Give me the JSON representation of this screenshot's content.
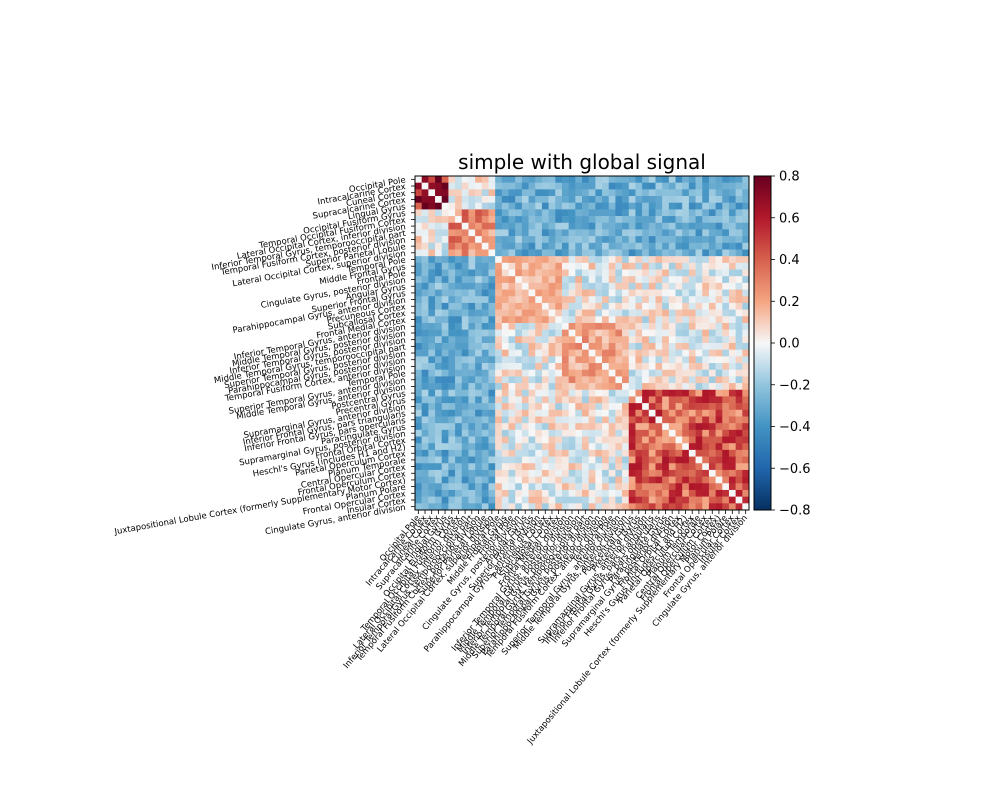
{
  "chart_data": {
    "type": "heatmap",
    "title": "simple with global signal",
    "colormap": "RdBu_r",
    "vmin": -0.8,
    "vmax": 0.8,
    "colorbar_ticks": [
      "0.8",
      "0.6",
      "0.4",
      "0.2",
      "0.0",
      "−0.2",
      "−0.4",
      "−0.6",
      "−0.8"
    ],
    "colorbar_values": [
      0.8,
      0.6,
      0.4,
      0.2,
      0.0,
      -0.2,
      -0.4,
      -0.6,
      -0.8
    ],
    "row_labels": [
      "Occipital Pole",
      "Intracalcarine Cortex",
      "Cuneal Cortex",
      "Supracalcarine Cortex",
      "Lingual Gyrus",
      "Occipital Fusiform Gyrus",
      "Temporal Occipital Fusiform Cortex",
      "Lateral Occipital Cortex, inferior division",
      "Inferior Temporal Gyrus, temporooccipital part",
      "Temporal Fusiform Cortex, posterior division",
      "Superior Parietal Lobule",
      "Lateral Occipital Cortex, superior division",
      "Temporal Pole",
      "Middle Frontal Gyrus",
      "Frontal Pole",
      "Cingulate Gyrus, posterior division",
      "Angular Gyrus",
      "Superior Frontal Gyrus",
      "Parahippocampal Gyrus, anterior division",
      "Precuneous Cortex",
      "Subcallosal Cortex",
      "Frontal Medial Cortex",
      "Inferior Temporal Gyrus, anterior division",
      "Middle Temporal Gyrus, posterior division",
      "Inferior Temporal Gyrus, posterior division",
      "Middle Temporal Gyrus, temporooccipital part",
      "Superior Temporal Gyrus, posterior division",
      "Parahippocampal Gyrus, posterior division",
      "Temporal Fusiform Cortex, anterior division",
      "Temporal Pole",
      "Superior Temporal Gyrus, anterior division",
      "Middle Temporal Gyrus, anterior division",
      "Postcentral Gyrus",
      "Precentral Gyrus",
      "Supramarginal Gyrus, anterior division",
      "Inferior Frontal Gyrus, pars triangularis",
      "Inferior Frontal Gyrus, pars opercularis",
      "Paracingulate Gyrus",
      "Supramarginal Gyrus, posterior division",
      "Frontal Orbital Cortex",
      "Heschl's Gyrus (includes H1 and H2)",
      "Parietal Operculum Cortex",
      "Planum Temporale",
      "Central Opercular Cortex",
      "Frontal Operculum Cortex",
      "Juxtapositional Lobule Cortex (formerly Supplementary Motor Cortex)",
      "Planum Polare",
      "Frontal Opercular Cortex",
      "Insular Cortex",
      "Cingulate Gyrus, anterior division"
    ],
    "matrix_note_blocks": [
      {
        "rows": [
          0,
          5
        ],
        "value": 0.65
      },
      {
        "rows": [
          5,
          12
        ],
        "value": 0.35
      },
      {
        "rows": [
          12,
          22
        ],
        "value": 0.2
      },
      {
        "rows": [
          22,
          32
        ],
        "value": 0.25
      },
      {
        "rows": [
          32,
          50
        ],
        "value": 0.45
      }
    ]
  }
}
